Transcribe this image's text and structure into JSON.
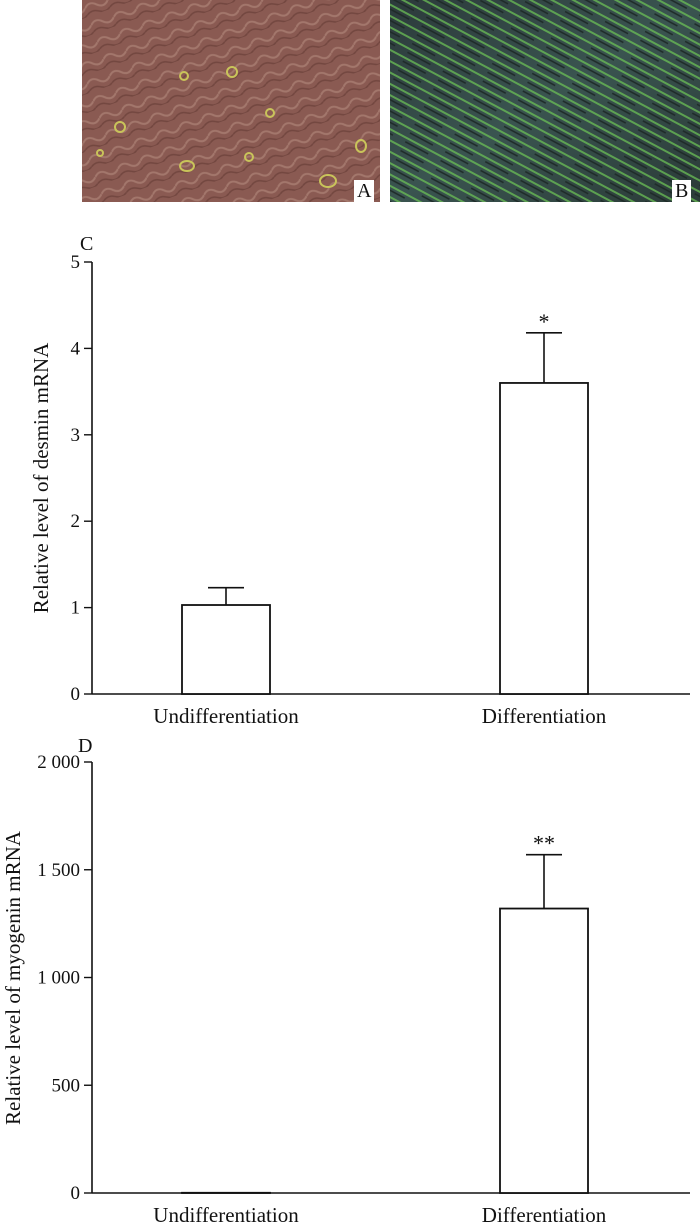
{
  "figure": {
    "panel_a_label": "A",
    "panel_b_label": "B"
  },
  "chart_data": [
    {
      "type": "bar",
      "panel_label": "C",
      "categories": [
        "Undifferentiation",
        "Differentiation"
      ],
      "values": [
        1.03,
        3.6
      ],
      "error_plus": [
        0.2,
        0.58
      ],
      "significance": [
        "",
        "*"
      ],
      "ylabel": "Relative level of desmin mRNA",
      "xlabel": "",
      "ylim": [
        0,
        5
      ],
      "yticks": [
        0,
        1,
        2,
        3,
        4,
        5
      ],
      "ytick_labels": [
        "0",
        "1",
        "2",
        "3",
        "4",
        "5"
      ]
    },
    {
      "type": "bar",
      "panel_label": "D",
      "categories": [
        "Undifferentiation",
        "Differentiation"
      ],
      "values": [
        1,
        1320
      ],
      "error_plus": [
        0,
        250
      ],
      "significance": [
        "",
        "**"
      ],
      "ylabel": "Relative level of myogenin mRNA",
      "xlabel": "",
      "ylim": [
        0,
        2000
      ],
      "yticks": [
        0,
        500,
        1000,
        1500,
        2000
      ],
      "ytick_labels": [
        "0",
        "500",
        "1 000",
        "1 500",
        "2 000"
      ]
    }
  ]
}
